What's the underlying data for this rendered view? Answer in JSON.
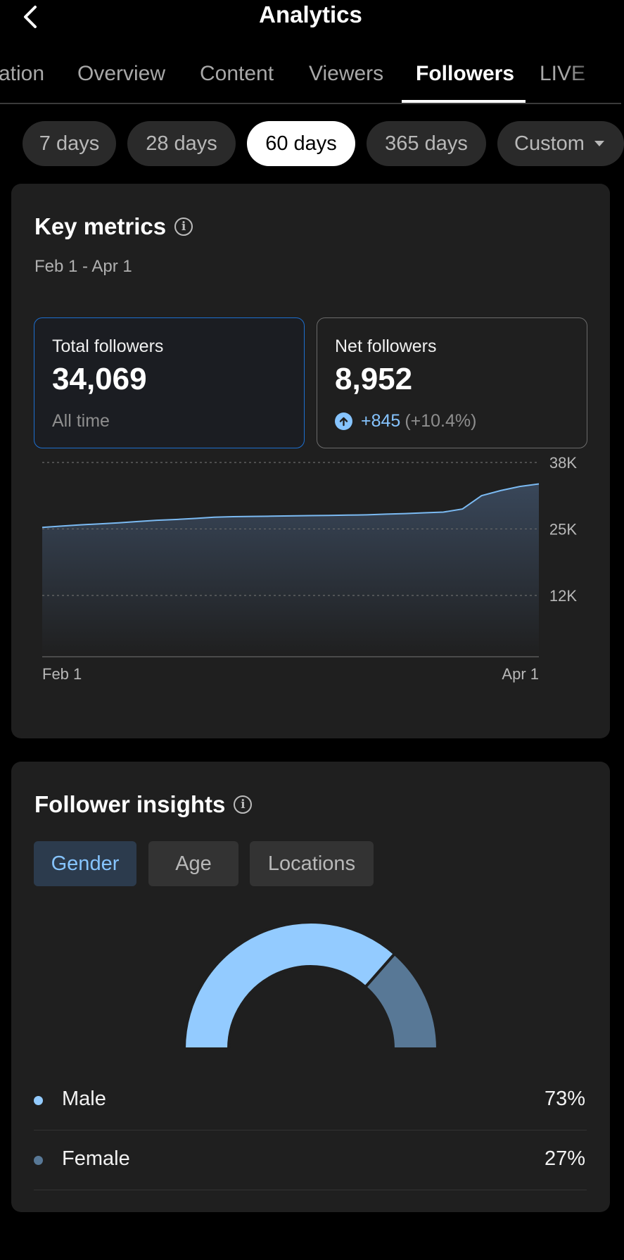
{
  "header": {
    "title": "Analytics"
  },
  "tabs": [
    {
      "label": "ation",
      "active": false
    },
    {
      "label": "Overview",
      "active": false
    },
    {
      "label": "Content",
      "active": false
    },
    {
      "label": "Viewers",
      "active": false
    },
    {
      "label": "Followers",
      "active": true
    },
    {
      "label": "LIVE",
      "active": false
    }
  ],
  "ranges": [
    {
      "label": "7 days"
    },
    {
      "label": "28 days"
    },
    {
      "label": "60 days",
      "active": true
    },
    {
      "label": "365 days"
    },
    {
      "label": "Custom"
    }
  ],
  "key_metrics": {
    "title": "Key metrics",
    "date_range": "Feb 1 - Apr 1",
    "total": {
      "label": "Total followers",
      "value": "34,069",
      "sub": "All time"
    },
    "net": {
      "label": "Net followers",
      "value": "8,952",
      "change": "+845",
      "change_pct": "(+10.4%)"
    }
  },
  "chart_data": {
    "type": "area",
    "x_start_label": "Feb 1",
    "x_end_label": "Apr 1",
    "ylim": [
      0,
      38000
    ],
    "yticks": [
      {
        "value": 38000,
        "label": "38K"
      },
      {
        "value": 25000,
        "label": "25K"
      },
      {
        "value": 12000,
        "label": "12K"
      }
    ],
    "grid": true,
    "series": [
      {
        "values": [
          25300,
          25550,
          25800,
          26000,
          26200,
          26450,
          26700,
          26850,
          27050,
          27300,
          27400,
          27450,
          27500,
          27550,
          27600,
          27650,
          27700,
          27750,
          27900,
          28000,
          28150,
          28300,
          28900,
          31500,
          32500,
          33300,
          33800
        ]
      }
    ],
    "colors": {
      "line": "#7bbaf2",
      "fill_top": "#39475a",
      "fill_bottom": "#1f1f1f"
    }
  },
  "insights": {
    "title": "Follower insights",
    "segments": [
      {
        "label": "Gender",
        "active": true
      },
      {
        "label": "Age"
      },
      {
        "label": "Locations"
      }
    ],
    "gender_chart": {
      "type": "pie",
      "slices": [
        {
          "label": "Male",
          "value": 73,
          "color": "#93cbff"
        },
        {
          "label": "Female",
          "value": 27,
          "color": "#587896"
        }
      ]
    },
    "legend": [
      {
        "label": "Male",
        "value": "73%",
        "color": "#93cbff"
      },
      {
        "label": "Female",
        "value": "27%",
        "color": "#587896"
      }
    ]
  }
}
